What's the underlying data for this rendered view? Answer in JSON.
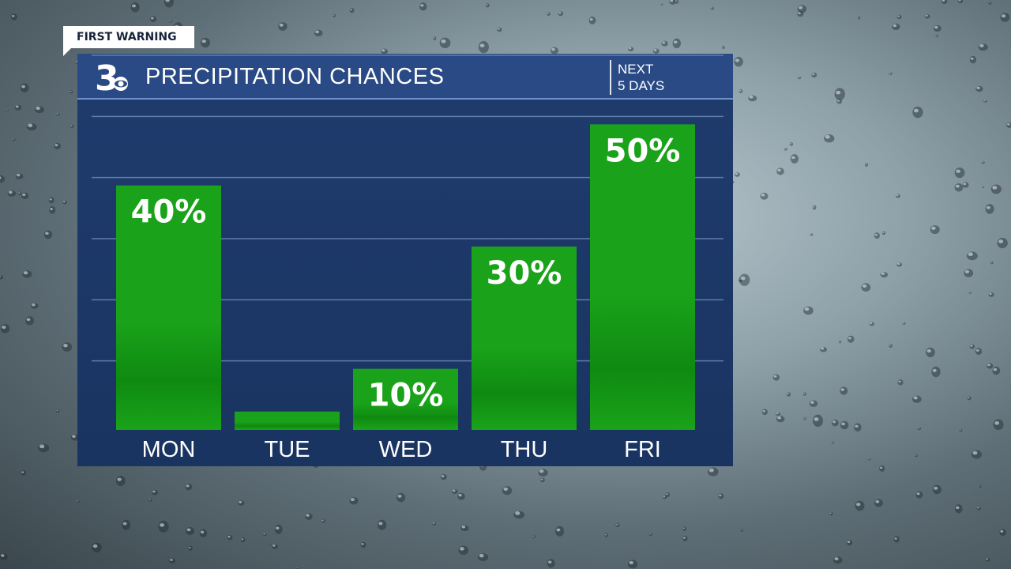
{
  "badge": "FIRST WARNING",
  "title": "PRECIPITATION CHANCES",
  "period_line1": "NEXT",
  "period_line2": "5 DAYS",
  "colors": {
    "panel": "#1f3c6e",
    "header": "#2a4a85",
    "bar": "#1aa31a",
    "bar_dark": "#0f8a11",
    "gridline": "#5f7cab",
    "text": "#ffffff"
  },
  "chart_data": {
    "type": "bar",
    "categories": [
      "MON",
      "TUE",
      "WED",
      "THU",
      "FRI"
    ],
    "values": [
      40,
      3,
      10,
      30,
      50
    ],
    "labels": [
      "40%",
      "",
      "10%",
      "30%",
      "50%"
    ],
    "ylim": [
      0,
      60
    ],
    "grid": true
  }
}
